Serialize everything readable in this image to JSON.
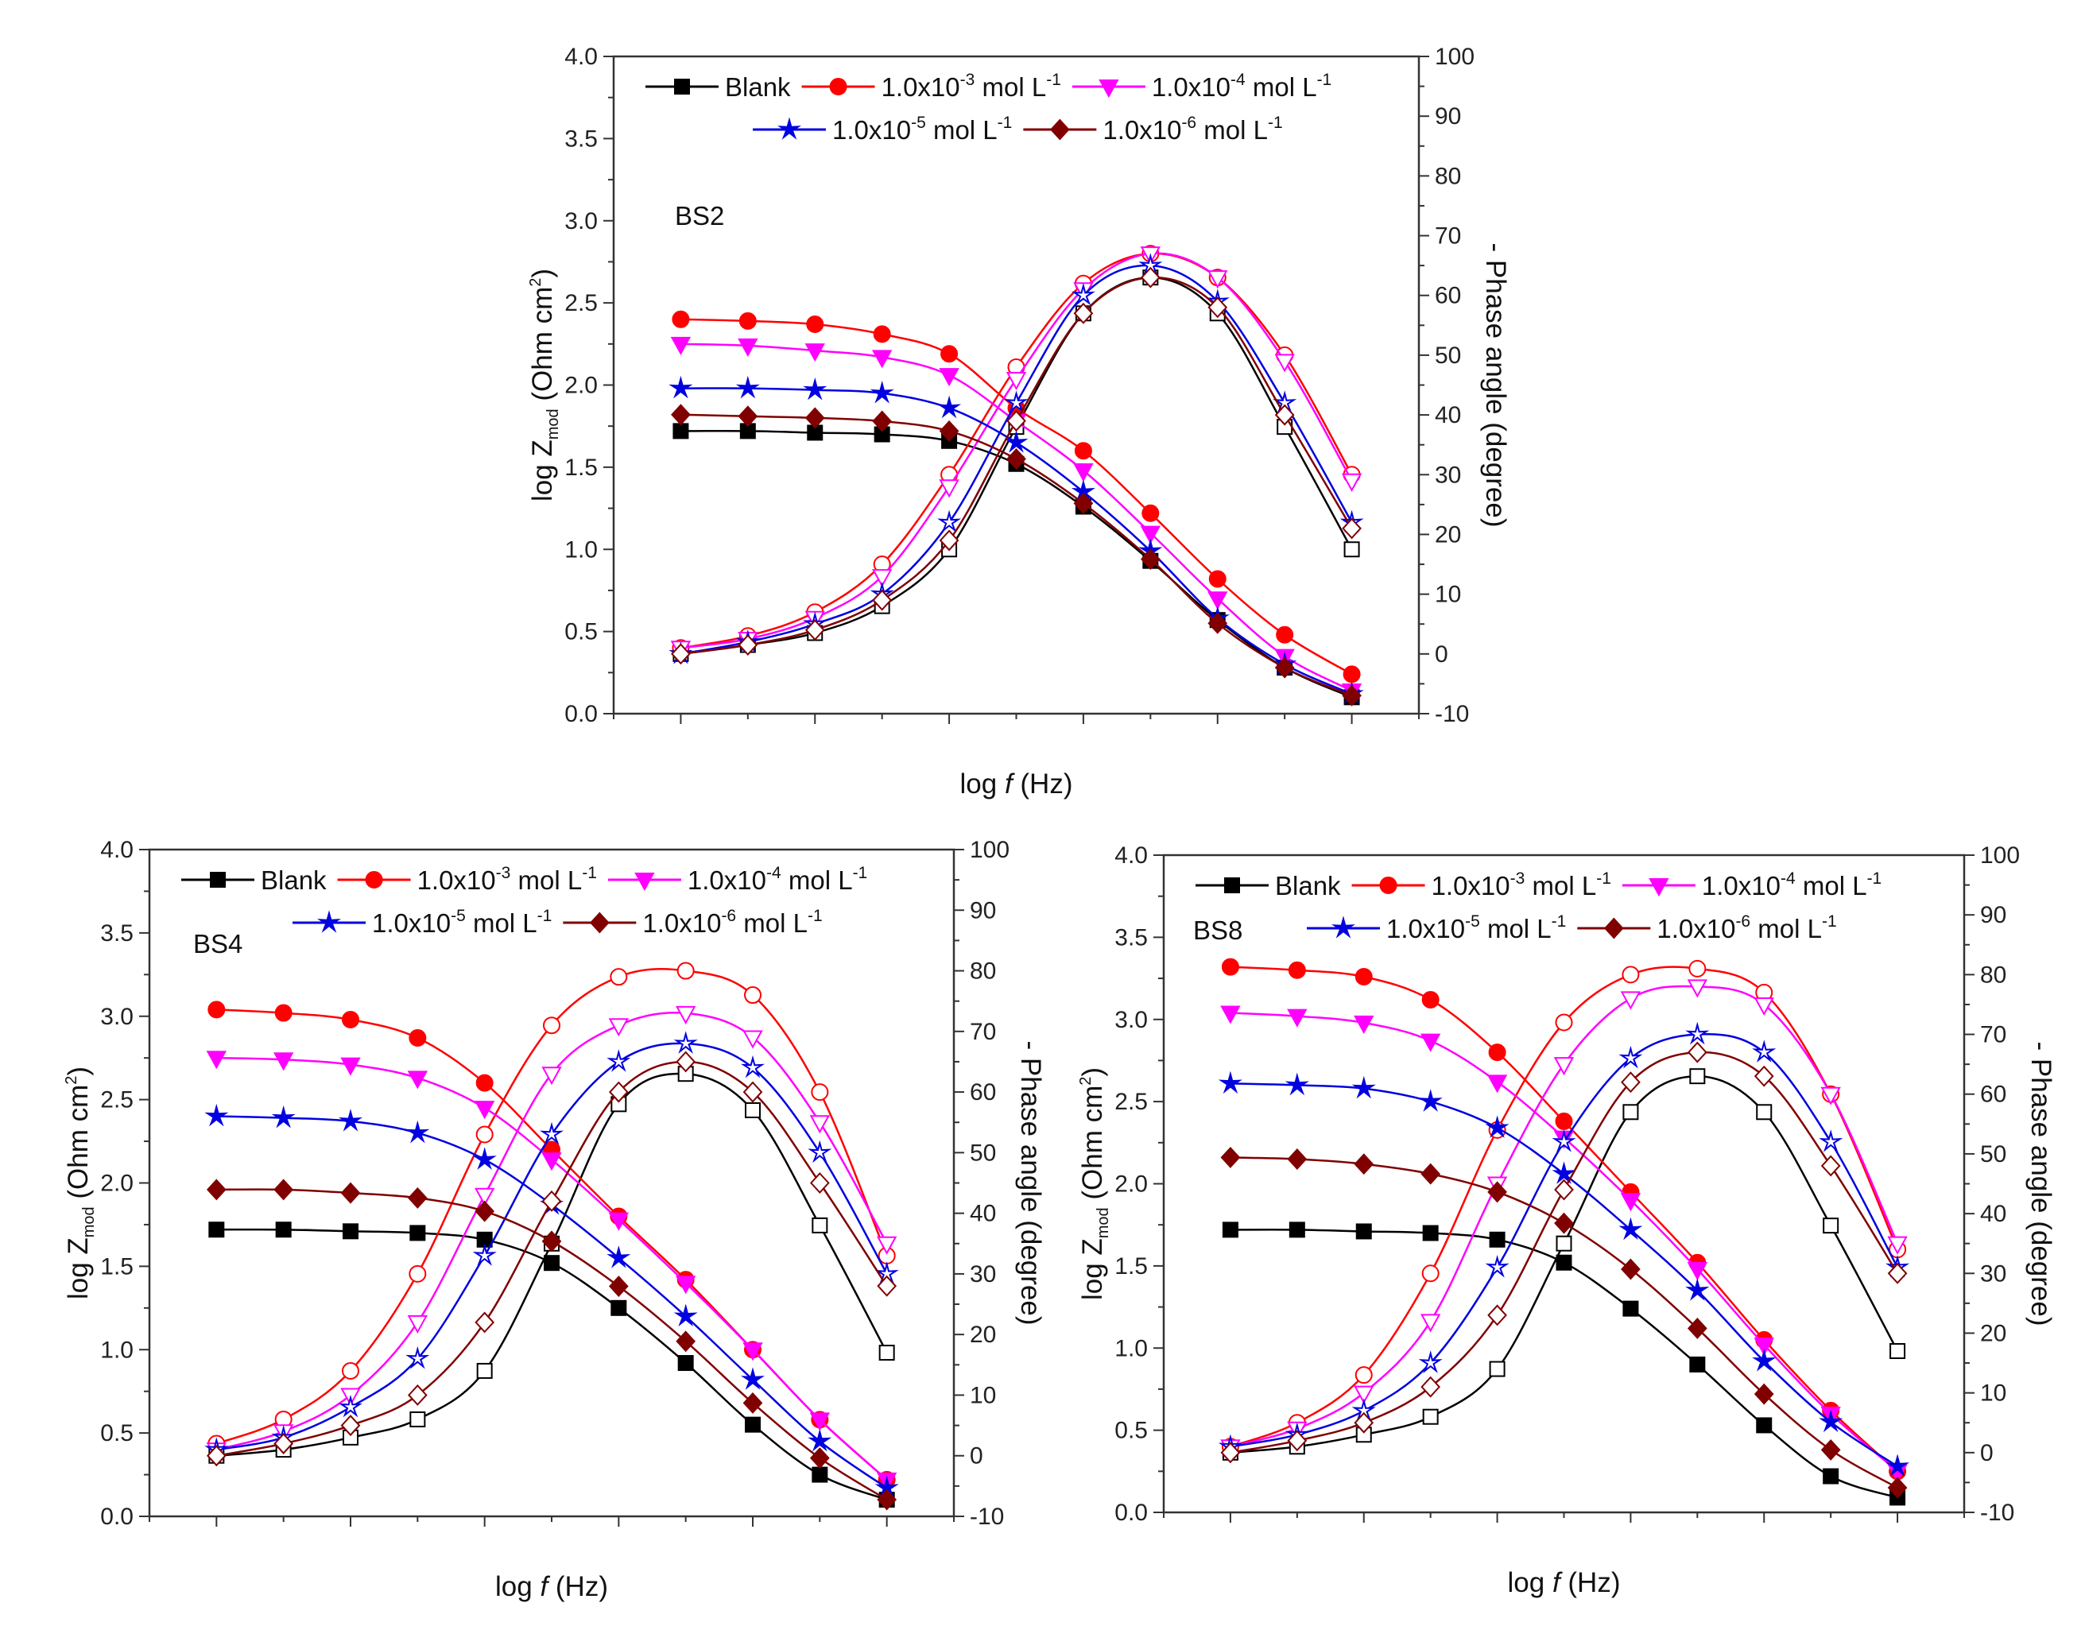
{
  "chart_data": [
    {
      "type": "line",
      "panel_label": "BS2",
      "x": [
        -1,
        -0.5,
        0,
        0.5,
        1,
        1.5,
        2,
        2.5,
        3,
        3.5,
        4
      ],
      "xlim": [
        -1.5,
        4.5
      ],
      "ylim": [
        0,
        4
      ],
      "y2lim": [
        -10,
        100
      ],
      "xticks": [
        -1,
        0,
        1,
        2,
        3,
        4
      ],
      "yticks": [
        0.0,
        0.5,
        1.0,
        1.5,
        2.0,
        2.5,
        3.0,
        3.5,
        4.0
      ],
      "y2ticks": [
        -10,
        0,
        10,
        20,
        30,
        40,
        50,
        60,
        70,
        80,
        90,
        100
      ],
      "xlabel": {
        "pre": "log ",
        "italic": "f",
        "post": " (Hz)"
      },
      "ylabel": {
        "pre": "log Z",
        "sub": "mod",
        "mid": " (Ohm cm",
        "sup": "2",
        "post": ")"
      },
      "y2label": "- Phase angle (degree)",
      "legend_position": "top",
      "series": [
        {
          "name": "Blank",
          "color": "#000000",
          "marker": "square",
          "logZ": [
            1.72,
            1.72,
            1.71,
            1.7,
            1.66,
            1.52,
            1.26,
            0.93,
            0.57,
            0.28,
            0.1
          ],
          "phase": [
            0,
            1.5,
            3.5,
            8,
            17.5,
            38,
            57,
            63,
            57,
            38,
            17.5
          ]
        },
        {
          "name": "1.0x10-3 mol L-1",
          "color": "#ff0000",
          "marker": "circle",
          "logZ": [
            2.4,
            2.39,
            2.37,
            2.31,
            2.19,
            1.86,
            1.6,
            1.22,
            0.82,
            0.48,
            0.24
          ],
          "phase": [
            1,
            3,
            7,
            15,
            30,
            48,
            62,
            67,
            63,
            50,
            30
          ]
        },
        {
          "name": "1.0x10-4 mol L-1",
          "color": "#ff00ff",
          "marker": "triangle-down",
          "logZ": [
            2.25,
            2.24,
            2.21,
            2.17,
            2.06,
            1.78,
            1.48,
            1.1,
            0.7,
            0.35,
            0.14
          ],
          "phase": [
            1,
            2.5,
            6,
            13,
            28,
            46,
            61,
            67,
            63,
            49,
            29
          ]
        },
        {
          "name": "1.0x10-5 mol L-1",
          "color": "#0000e0",
          "marker": "star",
          "logZ": [
            1.98,
            1.98,
            1.97,
            1.95,
            1.86,
            1.65,
            1.35,
            0.99,
            0.58,
            0.3,
            0.12
          ],
          "phase": [
            0,
            2,
            5,
            10,
            22,
            42,
            60,
            65,
            59,
            42,
            22
          ]
        },
        {
          "name": "1.0x10-6 mol L-1",
          "color": "#800000",
          "marker": "diamond",
          "logZ": [
            1.82,
            1.81,
            1.8,
            1.78,
            1.72,
            1.55,
            1.28,
            0.94,
            0.55,
            0.28,
            0.11
          ],
          "phase": [
            0,
            1.5,
            4,
            9,
            19,
            39,
            57,
            63,
            58,
            40,
            21
          ]
        }
      ]
    },
    {
      "type": "line",
      "panel_label": "BS4",
      "x": [
        -1,
        -0.5,
        0,
        0.5,
        1,
        1.5,
        2,
        2.5,
        3,
        3.5,
        4
      ],
      "xlim": [
        -1.5,
        4.5
      ],
      "ylim": [
        0,
        4
      ],
      "y2lim": [
        -10,
        100
      ],
      "xticks": [
        -1,
        0,
        1,
        2,
        3,
        4
      ],
      "yticks": [
        0.0,
        0.5,
        1.0,
        1.5,
        2.0,
        2.5,
        3.0,
        3.5,
        4.0
      ],
      "y2ticks": [
        -10,
        0,
        10,
        20,
        30,
        40,
        50,
        60,
        70,
        80,
        90,
        100
      ],
      "xlabel": {
        "pre": "log ",
        "italic": "f",
        "post": " (Hz)"
      },
      "ylabel": {
        "pre": "log Z",
        "sub": "mod",
        "mid": " (Ohm cm",
        "sup": "2",
        "post": ")"
      },
      "y2label": "- Phase angle (degree)",
      "legend_position": "top",
      "series": [
        {
          "name": "Blank",
          "color": "#000000",
          "marker": "square",
          "logZ": [
            1.72,
            1.72,
            1.71,
            1.7,
            1.66,
            1.52,
            1.25,
            0.92,
            0.55,
            0.25,
            0.1
          ],
          "phase": [
            0,
            1,
            3,
            6,
            14,
            35,
            58,
            63,
            57,
            38,
            17
          ]
        },
        {
          "name": "1.0x10-3 mol L-1",
          "color": "#ff0000",
          "marker": "circle",
          "logZ": [
            3.04,
            3.02,
            2.98,
            2.87,
            2.6,
            2.2,
            1.8,
            1.42,
            1.0,
            0.58,
            0.22
          ],
          "phase": [
            2,
            6,
            14,
            30,
            53,
            71,
            79,
            80,
            76,
            60,
            33
          ]
        },
        {
          "name": "1.0x10-4 mol L-1",
          "color": "#ff00ff",
          "marker": "triangle-down",
          "logZ": [
            2.75,
            2.74,
            2.71,
            2.63,
            2.45,
            2.14,
            1.78,
            1.4,
            1.0,
            0.58,
            0.22
          ],
          "phase": [
            1,
            4,
            10,
            22,
            43,
            63,
            71,
            73,
            69,
            55,
            35
          ]
        },
        {
          "name": "1.0x10-5 mol L-1",
          "color": "#0000e0",
          "marker": "star",
          "logZ": [
            2.4,
            2.39,
            2.37,
            2.3,
            2.14,
            1.87,
            1.55,
            1.2,
            0.82,
            0.45,
            0.17
          ],
          "phase": [
            1,
            3,
            8,
            16,
            33,
            53,
            65,
            68,
            64,
            50,
            30
          ]
        },
        {
          "name": "1.0x10-6 mol L-1",
          "color": "#800000",
          "marker": "diamond",
          "logZ": [
            1.96,
            1.96,
            1.94,
            1.91,
            1.83,
            1.65,
            1.38,
            1.05,
            0.68,
            0.35,
            0.1
          ],
          "phase": [
            0,
            2,
            5,
            10,
            22,
            42,
            60,
            65,
            60,
            45,
            28
          ]
        }
      ]
    },
    {
      "type": "line",
      "panel_label": "BS8",
      "x": [
        -1,
        -0.5,
        0,
        0.5,
        1,
        1.5,
        2,
        2.5,
        3,
        3.5,
        4
      ],
      "xlim": [
        -1.5,
        4.5
      ],
      "ylim": [
        0,
        4
      ],
      "y2lim": [
        -10,
        100
      ],
      "xticks": [
        -1,
        0,
        1,
        2,
        3,
        4
      ],
      "yticks": [
        0.0,
        0.5,
        1.0,
        1.5,
        2.0,
        2.5,
        3.0,
        3.5,
        4.0
      ],
      "y2ticks": [
        -10,
        0,
        10,
        20,
        30,
        40,
        50,
        60,
        70,
        80,
        90,
        100
      ],
      "xlabel": {
        "pre": "log ",
        "italic": "f",
        "post": " (Hz)"
      },
      "ylabel": {
        "pre": "log Z",
        "sub": "mod",
        "mid": " (Ohm cm",
        "sup": "2",
        "post": ")"
      },
      "y2label": "- Phase angle (degree)",
      "legend_position": "top",
      "series": [
        {
          "name": "Blank",
          "color": "#000000",
          "marker": "square",
          "logZ": [
            1.72,
            1.72,
            1.71,
            1.7,
            1.66,
            1.52,
            1.24,
            0.9,
            0.53,
            0.22,
            0.09
          ],
          "phase": [
            0,
            1,
            3,
            6,
            14,
            35,
            57,
            63,
            57,
            38,
            17
          ]
        },
        {
          "name": "1.0x10-3 mol L-1",
          "color": "#ff0000",
          "marker": "circle",
          "logZ": [
            3.32,
            3.3,
            3.26,
            3.12,
            2.8,
            2.38,
            1.95,
            1.52,
            1.05,
            0.62,
            0.25
          ],
          "phase": [
            1,
            5,
            13,
            30,
            54,
            72,
            80,
            81,
            77,
            60,
            34
          ]
        },
        {
          "name": "1.0x10-4 mol L-1",
          "color": "#ff00ff",
          "marker": "triangle-down",
          "logZ": [
            3.04,
            3.02,
            2.98,
            2.87,
            2.62,
            2.28,
            1.9,
            1.48,
            1.02,
            0.6,
            0.25
          ],
          "phase": [
            1,
            4,
            10,
            22,
            45,
            65,
            76,
            78,
            75,
            60,
            35
          ]
        },
        {
          "name": "1.0x10-5 mol L-1",
          "color": "#0000e0",
          "marker": "star",
          "logZ": [
            2.61,
            2.6,
            2.58,
            2.5,
            2.34,
            2.06,
            1.72,
            1.35,
            0.92,
            0.55,
            0.28
          ],
          "phase": [
            1,
            3,
            7,
            15,
            31,
            52,
            66,
            70,
            67,
            52,
            31
          ]
        },
        {
          "name": "1.0x10-6 mol L-1",
          "color": "#800000",
          "marker": "diamond",
          "logZ": [
            2.16,
            2.15,
            2.12,
            2.06,
            1.95,
            1.76,
            1.48,
            1.12,
            0.72,
            0.38,
            0.15
          ],
          "phase": [
            0,
            2,
            5,
            11,
            23,
            44,
            62,
            67,
            63,
            48,
            30
          ]
        }
      ]
    }
  ],
  "legend_labels": [
    {
      "base": "Blank",
      "exp": "",
      "unit": "",
      "unit_exp": ""
    },
    {
      "base": "1.0x10",
      "exp": "-3",
      "unit": " mol L",
      "unit_exp": "-1"
    },
    {
      "base": "1.0x10",
      "exp": "-4",
      "unit": " mol L",
      "unit_exp": "-1"
    },
    {
      "base": "1.0x10",
      "exp": "-5",
      "unit": " mol L",
      "unit_exp": "-1"
    },
    {
      "base": "1.0x10",
      "exp": "-6",
      "unit": " mol L",
      "unit_exp": "-1"
    }
  ]
}
